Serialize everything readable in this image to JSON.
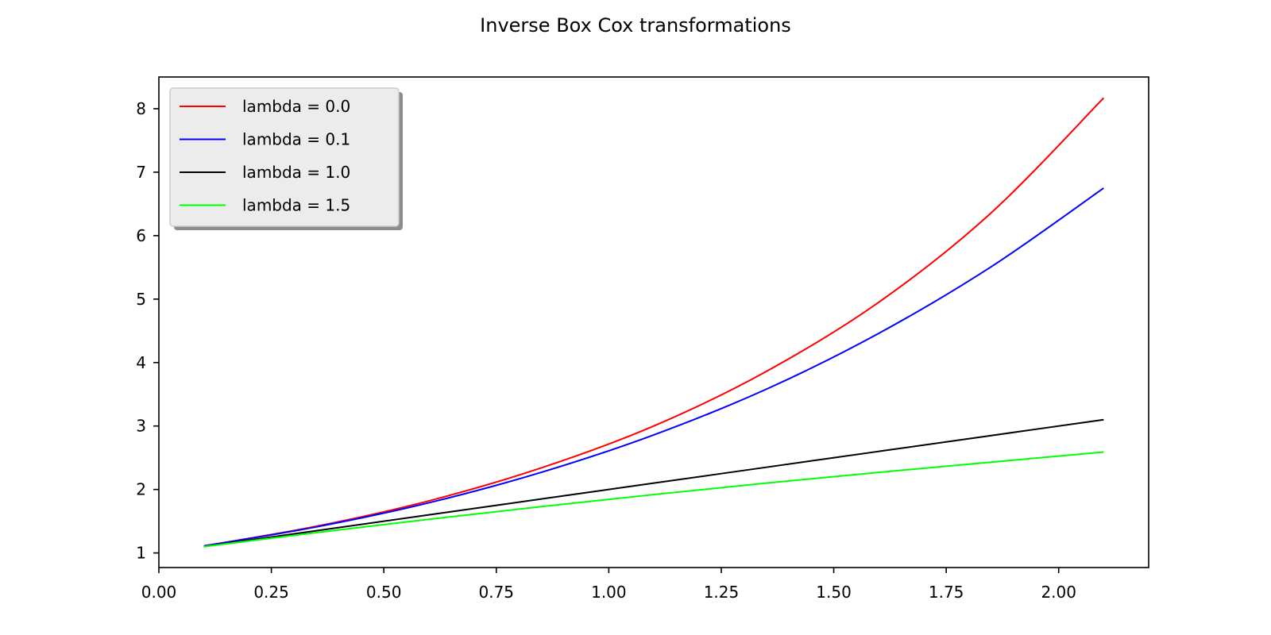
{
  "chart_data": {
    "type": "line",
    "title": "Inverse Box Cox transformations",
    "xlabel": "",
    "ylabel": "",
    "xlim": [
      0.0,
      2.2
    ],
    "ylim": [
      0.77,
      8.5
    ],
    "x_ticks": [
      "0.00",
      "0.25",
      "0.50",
      "0.75",
      "1.00",
      "1.25",
      "1.50",
      "1.75",
      "2.00"
    ],
    "y_ticks": [
      "1",
      "2",
      "3",
      "4",
      "5",
      "6",
      "7",
      "8"
    ],
    "grid": false,
    "legend_position": "top-left",
    "x": [
      0.1,
      0.35,
      0.6,
      0.85,
      1.1,
      1.35,
      1.6,
      1.85,
      2.1
    ],
    "series": [
      {
        "name": "lambda = 0.0",
        "color": "#ff0000",
        "values": [
          1.11,
          1.42,
          1.82,
          2.34,
          3.0,
          3.86,
          4.95,
          6.36,
          8.17
        ]
      },
      {
        "name": "lambda = 0.1",
        "color": "#0000ff",
        "values": [
          1.11,
          1.41,
          1.79,
          2.27,
          2.86,
          3.58,
          4.46,
          5.51,
          6.75
        ]
      },
      {
        "name": "lambda = 1.0",
        "color": "#000000",
        "values": [
          1.1,
          1.35,
          1.6,
          1.85,
          2.1,
          2.35,
          2.6,
          2.85,
          3.1
        ]
      },
      {
        "name": "lambda = 1.5",
        "color": "#00ff00",
        "values": [
          1.1,
          1.32,
          1.53,
          1.73,
          1.92,
          2.1,
          2.27,
          2.43,
          2.59
        ]
      }
    ]
  }
}
